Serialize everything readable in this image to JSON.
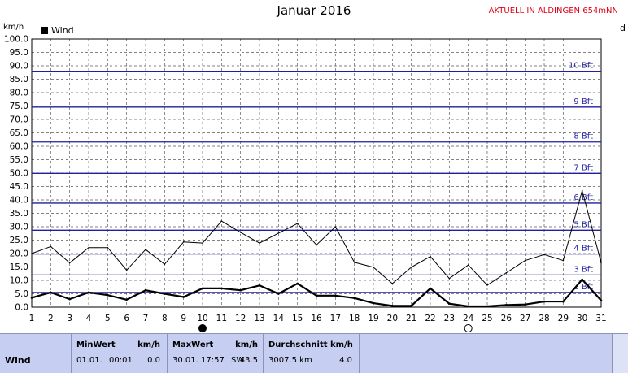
{
  "title": "Januar 2016",
  "station": "AKTUELL IN ALDINGEN 654mNN",
  "edge_letter": "d",
  "unit_label": "km/h",
  "legend_label": "Wind",
  "chart_data": {
    "type": "line",
    "title": "Januar 2016",
    "ylabel": "km/h",
    "xlabel": "",
    "ylim": [
      0,
      100
    ],
    "xlim": [
      1,
      31
    ],
    "grid": true,
    "legend": "top-left",
    "x": [
      1,
      2,
      3,
      4,
      5,
      6,
      7,
      8,
      9,
      10,
      11,
      12,
      13,
      14,
      15,
      16,
      17,
      18,
      19,
      20,
      21,
      22,
      23,
      24,
      25,
      26,
      27,
      28,
      29,
      30,
      31
    ],
    "y_ticks": [
      "0.0",
      "5.0",
      "10.0",
      "15.0",
      "20.0",
      "25.0",
      "30.0",
      "35.0",
      "40.0",
      "45.0",
      "50.0",
      "55.0",
      "60.0",
      "65.0",
      "70.0",
      "75.0",
      "80.0",
      "85.0",
      "90.0",
      "95.0",
      "100.0"
    ],
    "series": [
      {
        "name": "Wind",
        "role": "mean",
        "color": "#000000",
        "values": [
          3.5,
          5.5,
          3.0,
          5.5,
          4.5,
          2.8,
          6.3,
          5.0,
          3.8,
          7.0,
          7.0,
          6.3,
          8.1,
          5.0,
          8.8,
          4.3,
          4.3,
          3.4,
          1.5,
          0.5,
          0.5,
          7.0,
          1.3,
          0.3,
          0.3,
          0.8,
          1.0,
          2.1,
          2.1,
          10.3,
          2.5
        ]
      },
      {
        "role": "gust",
        "color": "#000000",
        "values": [
          20.0,
          22.6,
          16.5,
          22.2,
          22.2,
          13.8,
          21.5,
          16.0,
          24.3,
          23.9,
          32.1,
          27.9,
          23.9,
          27.6,
          31.2,
          23.2,
          30.0,
          16.7,
          14.9,
          8.8,
          14.9,
          18.9,
          10.7,
          15.7,
          8.2,
          12.8,
          17.4,
          19.6,
          17.4,
          43.5,
          16.5
        ]
      }
    ],
    "reference_lines": [
      {
        "label": "2 Bft",
        "value": 5.5
      },
      {
        "label": "3 Bft",
        "value": 12.0
      },
      {
        "label": "4 Bft",
        "value": 19.8
      },
      {
        "label": "5 Bft",
        "value": 28.7
      },
      {
        "label": "6 Bft",
        "value": 38.8
      },
      {
        "label": "7 Bft",
        "value": 49.9
      },
      {
        "label": "8 Bft",
        "value": 61.6
      },
      {
        "label": "9 Bft",
        "value": 74.6
      },
      {
        "label": "10 Bft",
        "value": 88.0
      }
    ],
    "moon_markers": [
      {
        "day": 10,
        "phase": "new-moon"
      },
      {
        "day": 24,
        "phase": "full-moon"
      }
    ]
  },
  "colors": {
    "grid": "#5a5a5a",
    "bft_line": "#1f1fa0",
    "bft_label": "#1f1fa0",
    "stats_bg": "#c6cff2",
    "station_text": "#e0001a"
  },
  "stats": {
    "row_label": "Wind",
    "min_header": "MinWert",
    "min_unit": "km/h",
    "min_date": "01.01.",
    "min_time": "00:01",
    "min_value": "0.0",
    "max_header": "MaxWert",
    "max_unit": "km/h",
    "max_datetime": "30.01. 17:57",
    "max_dir": "SW",
    "max_value": "43.5",
    "avg_header": "Durchschnitt km/h",
    "avg_distance": "3007.5 km",
    "avg_value": "4.0"
  }
}
